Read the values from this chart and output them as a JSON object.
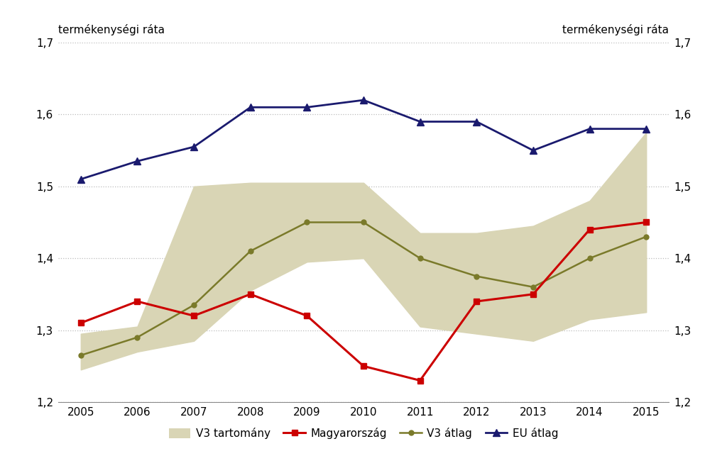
{
  "years": [
    2005,
    2006,
    2007,
    2008,
    2009,
    2010,
    2011,
    2012,
    2013,
    2014,
    2015
  ],
  "magyarorszag": [
    1.31,
    1.34,
    1.32,
    1.35,
    1.32,
    1.25,
    1.23,
    1.34,
    1.35,
    1.44,
    1.45
  ],
  "v3_atlag": [
    1.265,
    1.29,
    1.335,
    1.41,
    1.45,
    1.45,
    1.4,
    1.375,
    1.36,
    1.4,
    1.43
  ],
  "eu_atlag": [
    1.51,
    1.535,
    1.555,
    1.61,
    1.61,
    1.62,
    1.59,
    1.59,
    1.55,
    1.58,
    1.58
  ],
  "v3_min": [
    1.245,
    1.27,
    1.285,
    1.355,
    1.395,
    1.4,
    1.305,
    1.295,
    1.285,
    1.315,
    1.325
  ],
  "v3_max": [
    1.295,
    1.305,
    1.5,
    1.505,
    1.505,
    1.505,
    1.435,
    1.435,
    1.445,
    1.48,
    1.575
  ],
  "ylim": [
    1.2,
    1.7
  ],
  "yticks": [
    1.2,
    1.3,
    1.4,
    1.5,
    1.6,
    1.7
  ],
  "ylabel_left": "termékenységi ráta",
  "ylabel_right": "termékenységi ráta",
  "color_magyarorszag": "#cc0000",
  "color_v3_atlag": "#7a7a2a",
  "color_eu_atlag": "#1a1a6e",
  "color_v3_band": "#d9d5b5",
  "background_color": "#ffffff",
  "legend_labels": [
    "V3 tartomány",
    "Magyarország",
    "V3 átlag",
    "EU átlag"
  ],
  "grid_color": "#bbbbbb",
  "font_size_axis_label": 11,
  "font_size_tick": 11,
  "font_size_legend": 11
}
